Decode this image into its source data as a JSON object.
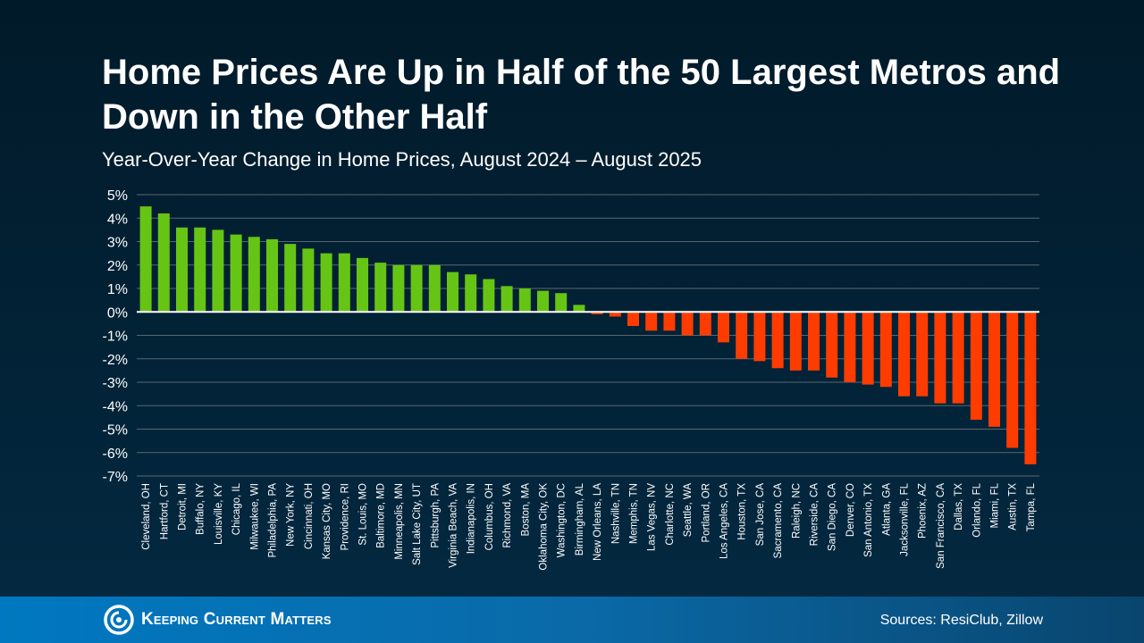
{
  "title": "Home Prices Are Up in Half of the 50 Largest Metros and Down in the Other Half",
  "subtitle": "Year-Over-Year Change in Home Prices, August 2024 – August 2025",
  "footer": {
    "brand": "Keeping Current Matters",
    "sources": "Sources: ResiClub, Zillow"
  },
  "colors": {
    "positive": "#66c514",
    "negative": "#ff3c00",
    "grid": "#5a6670",
    "zero_line": "#ffffff"
  },
  "chart_data": {
    "type": "bar",
    "title": "Home Prices Are Up in Half of the 50 Largest Metros and Down in the Other Half",
    "subtitle": "Year-Over-Year Change in Home Prices, August 2024 – August 2025",
    "ylim": [
      -7,
      5
    ],
    "yticks": [
      5,
      4,
      3,
      2,
      1,
      0,
      -1,
      -2,
      -3,
      -4,
      -5,
      -6,
      -7
    ],
    "ytick_labels": [
      "5%",
      "4%",
      "3%",
      "2%",
      "1%",
      "0%",
      "-1%",
      "-2%",
      "-3%",
      "-4%",
      "-5%",
      "-6%",
      "-7%"
    ],
    "grid": true,
    "unit": "%",
    "categories": [
      "Cleveland, OH",
      "Hartford, CT",
      "Detroit, MI",
      "Buffalo, NY",
      "Louisville, KY",
      "Chicago, IL",
      "Milwaukee, WI",
      "Philadelphia, PA",
      "New York, NY",
      "Cincinnati, OH",
      "Kansas City, MO",
      "Providence, RI",
      "St. Louis, MO",
      "Baltimore, MD",
      "Minneapolis, MN",
      "Salt Lake City, UT",
      "Pittsburgh, PA",
      "Virginia Beach, VA",
      "Indianapolis, IN",
      "Columbus, OH",
      "Richmond, VA",
      "Boston, MA",
      "Oklahoma City, OK",
      "Washington, DC",
      "Birmingham, AL",
      "New Orleans, LA",
      "Nashville, TN",
      "Memphis, TN",
      "Las Vegas, NV",
      "Charlotte, NC",
      "Seattle, WA",
      "Portland, OR",
      "Los Angeles, CA",
      "Houston, TX",
      "San Jose, CA",
      "Sacramento, CA",
      "Raleigh, NC",
      "Riverside, CA",
      "San Diego, CA",
      "Denver, CO",
      "San Antonio, TX",
      "Atlanta, GA",
      "Jacksonville, FL",
      "Phoenix, AZ",
      "San Francisco, CA",
      "Dallas, TX",
      "Orlando, FL",
      "Miami, FL",
      "Austin, TX",
      "Tampa, FL"
    ],
    "values": [
      4.5,
      4.2,
      3.6,
      3.6,
      3.5,
      3.3,
      3.2,
      3.1,
      2.9,
      2.7,
      2.5,
      2.5,
      2.3,
      2.1,
      2.0,
      2.0,
      2.0,
      1.7,
      1.6,
      1.4,
      1.1,
      1.0,
      0.9,
      0.8,
      0.3,
      -0.1,
      -0.2,
      -0.6,
      -0.8,
      -0.8,
      -1.0,
      -1.0,
      -1.3,
      -2.0,
      -2.1,
      -2.4,
      -2.5,
      -2.5,
      -2.8,
      -3.0,
      -3.1,
      -3.2,
      -3.6,
      -3.6,
      -3.9,
      -3.9,
      -4.6,
      -4.9,
      -5.8,
      -6.5
    ]
  }
}
